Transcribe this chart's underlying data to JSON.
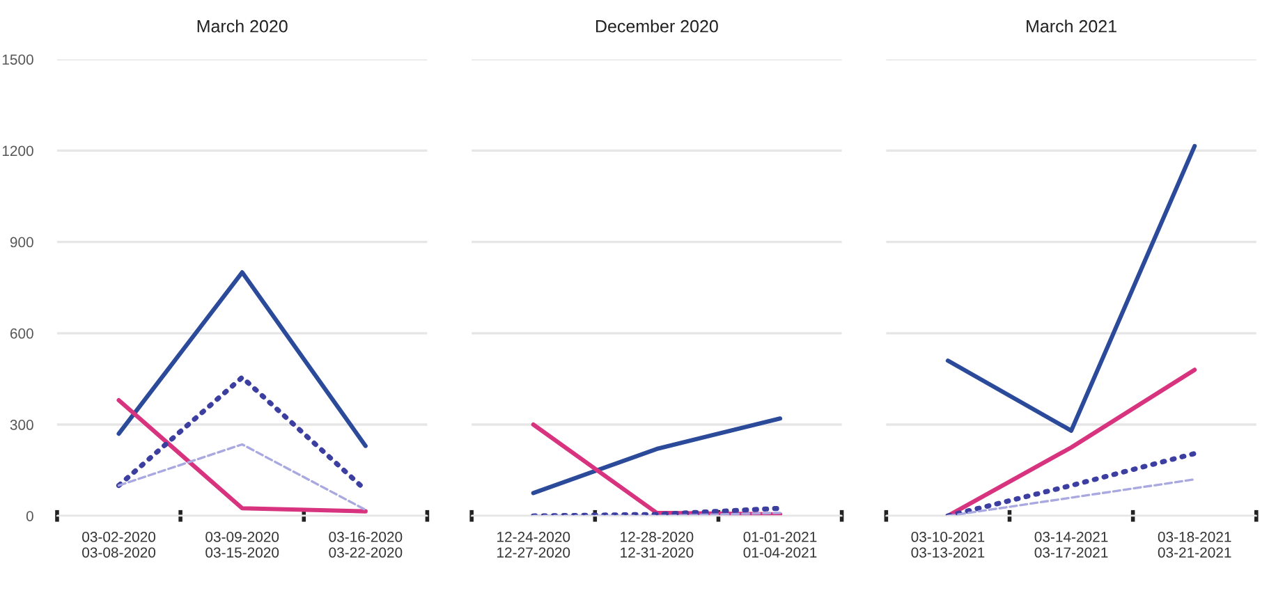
{
  "chart_data": [
    {
      "type": "line",
      "title": "March 2020",
      "categories": [
        "03-02-2020\n03-08-2020",
        "03-09-2020\n03-15-2020",
        "03-16-2020\n03-22-2020"
      ],
      "ylim": [
        0,
        1500
      ],
      "yticks": [
        0,
        300,
        600,
        900,
        1200,
        1500
      ],
      "grid": "y",
      "marker": "none",
      "series": [
        {
          "color": "#2b4a9a",
          "line_style": "solid",
          "values": [
            270,
            800,
            230
          ]
        },
        {
          "color": "#d8337f",
          "line_style": "solid",
          "values": [
            380,
            25,
            15
          ]
        },
        {
          "color": "#3d3fa0",
          "line_style": "dotted",
          "values": [
            100,
            455,
            85
          ]
        },
        {
          "color": "#a9a8e0",
          "line_style": "dashed",
          "values": [
            100,
            235,
            20
          ]
        }
      ]
    },
    {
      "type": "line",
      "title": "December 2020",
      "categories": [
        "12-24-2020\n12-27-2020",
        "12-28-2020\n12-31-2020",
        "01-01-2021\n01-04-2021"
      ],
      "ylim": [
        0,
        1500
      ],
      "yticks": [
        0,
        300,
        600,
        900,
        1200,
        1500
      ],
      "grid": "y",
      "marker": "none",
      "tick_labels": "x",
      "series": [
        {
          "color": "#2b4a9a",
          "line_style": "solid",
          "values": [
            75,
            220,
            320
          ]
        },
        {
          "color": "#d8337f",
          "line_style": "solid",
          "values": [
            300,
            10,
            5
          ]
        },
        {
          "color": "#3d3fa0",
          "line_style": "dotted",
          "values": [
            0,
            5,
            25
          ]
        },
        {
          "color": "#a9a8e0",
          "line_style": "dashed",
          "values": [
            0,
            0,
            10
          ]
        }
      ]
    },
    {
      "type": "line",
      "title": "March 2021",
      "categories": [
        "03-10-2021\n03-13-2021",
        "03-14-2021\n03-17-2021",
        "03-18-2021\n03-21-2021"
      ],
      "ylim": [
        0,
        1500
      ],
      "yticks": [
        0,
        300,
        600,
        900,
        1200,
        1500
      ],
      "grid": "y",
      "marker": "none",
      "tick_labels": "x",
      "series": [
        {
          "color": "#2b4a9a",
          "line_style": "solid",
          "values": [
            510,
            280,
            1215
          ]
        },
        {
          "color": "#d8337f",
          "line_style": "solid",
          "values": [
            0,
            225,
            480
          ]
        },
        {
          "color": "#3d3fa0",
          "line_style": "dotted",
          "values": [
            0,
            100,
            205
          ]
        },
        {
          "color": "#a9a8e0",
          "line_style": "dashed",
          "values": [
            0,
            60,
            120
          ]
        }
      ]
    }
  ]
}
